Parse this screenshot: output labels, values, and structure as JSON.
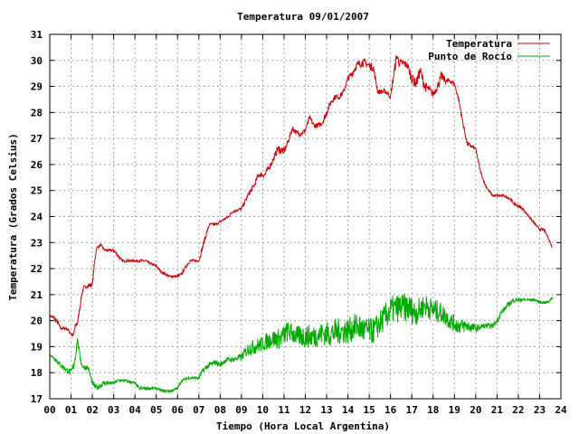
{
  "chart_data": {
    "type": "line",
    "title": "Temperatura 09/01/2007",
    "xlabel": "Tiempo (Hora Local Argentina)",
    "ylabel": "Temperatura (Grados Celsius)",
    "xlim": [
      0,
      24
    ],
    "ylim": [
      17,
      31
    ],
    "grid": true,
    "legend_position": "top-right",
    "x_tick_labels": [
      "00",
      "01",
      "02",
      "03",
      "04",
      "05",
      "06",
      "07",
      "08",
      "09",
      "10",
      "11",
      "12",
      "13",
      "14",
      "15",
      "16",
      "17",
      "18",
      "19",
      "20",
      "21",
      "22",
      "23",
      "24"
    ],
    "y_tick_labels": [
      "17",
      "18",
      "19",
      "20",
      "21",
      "22",
      "23",
      "24",
      "25",
      "26",
      "27",
      "28",
      "29",
      "30",
      "31"
    ],
    "series": [
      {
        "name": "Temperatura",
        "color": "#cc0000",
        "x": [
          0,
          0.2,
          0.4,
          0.5,
          0.8,
          1.1,
          1.2,
          1.3,
          1.5,
          1.6,
          1.7,
          2.0,
          2.1,
          2.2,
          2.4,
          2.6,
          3.0,
          3.2,
          3.4,
          4.0,
          4.5,
          4.7,
          5.0,
          5.1,
          5.2,
          5.4,
          5.6,
          5.8,
          6.0,
          6.2,
          6.4,
          6.6,
          7.0,
          7.1,
          7.3,
          7.5,
          7.8,
          8.0,
          8.2,
          8.4,
          8.6,
          9.0,
          9.3,
          9.6,
          9.8,
          10.1,
          10.3,
          10.5,
          10.7,
          11.0,
          11.2,
          11.4,
          11.6,
          11.8,
          12.0,
          12.2,
          12.4,
          12.6,
          12.8,
          13.0,
          13.2,
          13.4,
          13.6,
          13.8,
          14.0,
          14.2,
          14.4,
          14.6,
          14.8,
          15.0,
          15.2,
          15.4,
          15.6,
          15.8,
          16.0,
          16.2,
          16.3,
          16.4,
          16.6,
          16.8,
          17.0,
          17.2,
          17.4,
          17.6,
          17.8,
          18.0,
          18.2,
          18.4,
          18.6,
          18.8,
          19.0,
          19.2,
          19.4,
          19.6,
          19.8,
          20.0,
          20.2,
          20.4,
          20.6,
          20.8,
          21.0,
          21.3,
          21.6,
          21.8,
          22.0,
          22.2,
          22.4,
          22.6,
          22.8,
          23.0,
          23.2,
          23.4,
          23.6
        ],
        "y": [
          20.2,
          20.1,
          19.9,
          19.7,
          19.7,
          19.4,
          19.8,
          19.9,
          21.0,
          21.3,
          21.3,
          21.4,
          22.2,
          22.8,
          22.9,
          22.7,
          22.7,
          22.5,
          22.3,
          22.3,
          22.3,
          22.2,
          22.1,
          22.0,
          21.9,
          21.8,
          21.7,
          21.7,
          21.7,
          21.8,
          22.1,
          22.3,
          22.3,
          22.6,
          23.2,
          23.7,
          23.7,
          23.8,
          23.9,
          24.0,
          24.2,
          24.3,
          24.8,
          25.2,
          25.6,
          25.6,
          25.9,
          26.2,
          26.6,
          26.5,
          26.9,
          27.4,
          27.2,
          27.2,
          27.3,
          27.8,
          27.5,
          27.5,
          27.6,
          28.0,
          28.4,
          28.6,
          28.6,
          28.8,
          29.3,
          29.5,
          29.8,
          29.9,
          29.9,
          29.8,
          29.7,
          28.8,
          28.8,
          28.8,
          28.6,
          29.7,
          30.2,
          29.9,
          29.9,
          29.8,
          29.3,
          29.1,
          29.6,
          29.0,
          28.9,
          28.7,
          29.0,
          29.4,
          29.2,
          29.2,
          29.1,
          28.5,
          27.6,
          26.8,
          26.7,
          26.6,
          25.8,
          25.3,
          25.0,
          24.8,
          24.8,
          24.8,
          24.7,
          24.5,
          24.4,
          24.3,
          24.1,
          23.9,
          23.7,
          23.5,
          23.5,
          23.2,
          22.8
        ],
        "noise": [
          0,
          0.1,
          0.1,
          0.05,
          0.05,
          0.1,
          0.1,
          0.1,
          0.1,
          0.05,
          0.05,
          0.1,
          0.1,
          0.05,
          0.05,
          0.05,
          0.05,
          0.05,
          0.05,
          0.05,
          0.05,
          0.05,
          0.05,
          0.05,
          0.05,
          0.05,
          0.05,
          0.05,
          0.05,
          0.05,
          0.05,
          0.05,
          0.05,
          0.1,
          0.1,
          0.05,
          0.05,
          0.05,
          0.05,
          0.05,
          0.05,
          0.05,
          0.1,
          0.1,
          0.1,
          0.1,
          0.1,
          0.1,
          0.15,
          0.15,
          0.1,
          0.1,
          0.1,
          0.1,
          0.1,
          0.1,
          0.1,
          0.1,
          0.1,
          0.15,
          0.1,
          0.1,
          0.1,
          0.1,
          0.1,
          0.15,
          0.15,
          0.15,
          0.15,
          0.15,
          0.15,
          0.1,
          0.1,
          0.1,
          0.1,
          0.2,
          0.2,
          0.15,
          0.15,
          0.15,
          0.2,
          0.2,
          0.2,
          0.2,
          0.15,
          0.15,
          0.15,
          0.2,
          0.1,
          0.1,
          0.1,
          0.1,
          0.1,
          0.1,
          0.05,
          0.05,
          0.05,
          0.05,
          0.05,
          0.05,
          0.05,
          0.05,
          0.05,
          0.05,
          0.05,
          0.05,
          0.05,
          0.05,
          0.05,
          0.05,
          0.05,
          0.05,
          0.05
        ]
      },
      {
        "name": "Punto de Rocío",
        "color": "#00aa00",
        "x": [
          0,
          0.3,
          0.5,
          0.8,
          1.0,
          1.1,
          1.2,
          1.3,
          1.4,
          1.5,
          1.6,
          1.8,
          2.0,
          2.2,
          2.5,
          3.0,
          3.2,
          3.5,
          4.0,
          4.2,
          4.5,
          5.0,
          5.3,
          5.7,
          6.0,
          6.2,
          6.5,
          6.8,
          7.0,
          7.2,
          7.5,
          7.8,
          8.0,
          8.3,
          8.6,
          9.0,
          9.3,
          9.6,
          10.0,
          10.4,
          10.8,
          11.2,
          11.6,
          12.0,
          12.4,
          12.8,
          13.2,
          13.6,
          14.0,
          14.4,
          14.8,
          15.2,
          15.6,
          16.0,
          16.4,
          16.8,
          17.2,
          17.6,
          18.0,
          18.4,
          18.8,
          19.2,
          19.6,
          20.0,
          20.4,
          20.8,
          21.0,
          21.2,
          21.5,
          21.8,
          22.0,
          22.2,
          22.5,
          22.8,
          23.0,
          23.2,
          23.4,
          23.6
        ],
        "y": [
          18.7,
          18.5,
          18.3,
          18.1,
          18.0,
          18.2,
          18.6,
          19.3,
          18.7,
          18.3,
          18.2,
          18.2,
          17.6,
          17.4,
          17.6,
          17.6,
          17.7,
          17.7,
          17.6,
          17.4,
          17.4,
          17.4,
          17.3,
          17.3,
          17.4,
          17.7,
          17.8,
          17.8,
          17.8,
          18.1,
          18.3,
          18.4,
          18.3,
          18.5,
          18.5,
          18.6,
          18.9,
          19.0,
          19.1,
          19.3,
          19.3,
          19.6,
          19.4,
          19.4,
          19.4,
          19.5,
          19.5,
          19.6,
          19.6,
          19.8,
          19.6,
          19.6,
          20.0,
          20.4,
          20.5,
          20.5,
          20.3,
          20.6,
          20.4,
          20.3,
          20.0,
          19.8,
          19.8,
          19.7,
          19.8,
          19.8,
          20.0,
          20.3,
          20.6,
          20.8,
          20.8,
          20.8,
          20.8,
          20.8,
          20.7,
          20.7,
          20.7,
          20.9
        ],
        "noise": [
          0.05,
          0.1,
          0.1,
          0.1,
          0.15,
          0.2,
          0.2,
          0.1,
          0.15,
          0.1,
          0.1,
          0.1,
          0.1,
          0.1,
          0.1,
          0.05,
          0.05,
          0.05,
          0.05,
          0.05,
          0.05,
          0.05,
          0.05,
          0.05,
          0.05,
          0.05,
          0.05,
          0.05,
          0.05,
          0.1,
          0.1,
          0.1,
          0.1,
          0.1,
          0.1,
          0.15,
          0.25,
          0.3,
          0.3,
          0.35,
          0.4,
          0.4,
          0.4,
          0.45,
          0.45,
          0.45,
          0.5,
          0.5,
          0.5,
          0.5,
          0.55,
          0.5,
          0.5,
          0.55,
          0.55,
          0.55,
          0.5,
          0.45,
          0.45,
          0.4,
          0.35,
          0.3,
          0.25,
          0.15,
          0.1,
          0.1,
          0.1,
          0.1,
          0.1,
          0.1,
          0.05,
          0.05,
          0.05,
          0.05,
          0.05,
          0.05,
          0.05,
          0.05
        ]
      }
    ]
  }
}
